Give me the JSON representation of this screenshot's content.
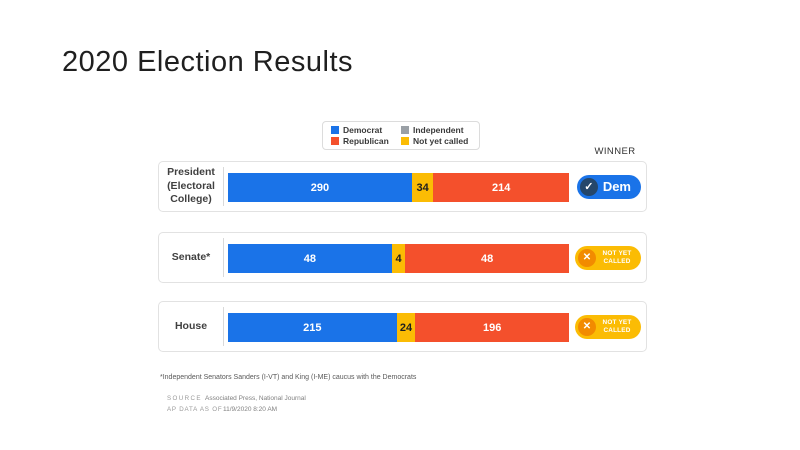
{
  "title": "2020 Election Results",
  "winner_header": "WINNER",
  "legend": {
    "items": [
      {
        "label": "Democrat",
        "color": "#1a73e8"
      },
      {
        "label": "Republican",
        "color": "#f4502c"
      },
      {
        "label": "Independent",
        "color": "#9aa0a6"
      },
      {
        "label": "Not yet called",
        "color": "#fbbc04"
      }
    ]
  },
  "chart_data": {
    "type": "bar",
    "orientation": "horizontal_stacked",
    "legend_entries": [
      "Democrat",
      "Republican",
      "Independent",
      "Not yet called"
    ],
    "rows": [
      {
        "label": "President (Electoral College)",
        "total": 538,
        "segments": [
          {
            "name": "Democrat",
            "value": 290,
            "color": "#1a73e8",
            "text_color": "#ffffff"
          },
          {
            "name": "Not yet called",
            "value": 34,
            "color": "#fbbc04",
            "text_color": "#1f1f1f"
          },
          {
            "name": "Republican",
            "value": 214,
            "color": "#f4502c",
            "text_color": "#ffffff"
          }
        ],
        "winner": {
          "status": "called",
          "label": "Dem"
        }
      },
      {
        "label": "Senate*",
        "total": 100,
        "segments": [
          {
            "name": "Democrat",
            "value": 48,
            "color": "#1a73e8",
            "text_color": "#ffffff"
          },
          {
            "name": "Not yet called",
            "value": 4,
            "color": "#fbbc04",
            "text_color": "#1f1f1f"
          },
          {
            "name": "Republican",
            "value": 48,
            "color": "#f4502c",
            "text_color": "#ffffff"
          }
        ],
        "winner": {
          "status": "not_yet_called",
          "label": "NOT YET CALLED"
        }
      },
      {
        "label": "House",
        "total": 435,
        "segments": [
          {
            "name": "Democrat",
            "value": 215,
            "color": "#1a73e8",
            "text_color": "#ffffff"
          },
          {
            "name": "Not yet called",
            "value": 24,
            "color": "#fbbc04",
            "text_color": "#1f1f1f"
          },
          {
            "name": "Republican",
            "value": 196,
            "color": "#f4502c",
            "text_color": "#ffffff"
          }
        ],
        "winner": {
          "status": "not_yet_called",
          "label": "NOT YET CALLED"
        }
      }
    ]
  },
  "icons": {
    "check": "✓",
    "cross": "✕"
  },
  "footnote": "*Independent Senators Sanders (I-VT) and King (I-ME) caucus with the Democrats",
  "source": {
    "source_label": "SOURCE",
    "source_value": "Associated Press, National Journal",
    "asof_label": "AP DATATA AS OF",
    "asof_value": "11/9/2020 8:20 AM"
  }
}
